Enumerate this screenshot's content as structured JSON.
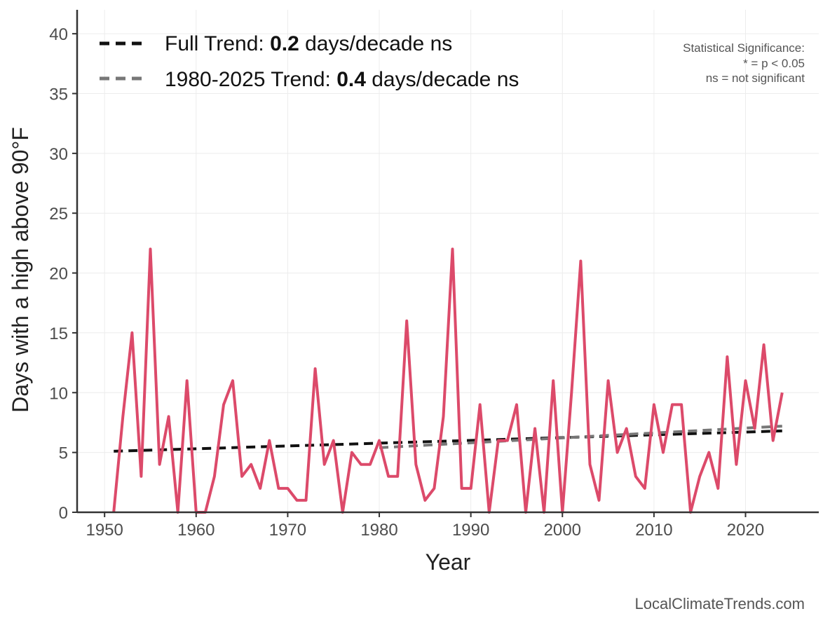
{
  "chart_data": {
    "type": "line",
    "xlabel": "Year",
    "ylabel": "Days with a high above 90°F",
    "xlim": [
      1947,
      2028
    ],
    "ylim": [
      0,
      42
    ],
    "xticks": [
      1950,
      1960,
      1970,
      1980,
      1990,
      2000,
      2010,
      2020
    ],
    "yticks": [
      0,
      5,
      10,
      15,
      20,
      25,
      30,
      35,
      40
    ],
    "grid": true,
    "legend_position": "top-left",
    "series": [
      {
        "color": "#dc4a6a",
        "x": [
          1951,
          1952,
          1953,
          1954,
          1955,
          1956,
          1957,
          1958,
          1959,
          1960,
          1961,
          1962,
          1963,
          1964,
          1965,
          1966,
          1967,
          1968,
          1969,
          1970,
          1971,
          1972,
          1973,
          1974,
          1975,
          1976,
          1977,
          1978,
          1979,
          1980,
          1981,
          1982,
          1983,
          1984,
          1985,
          1986,
          1987,
          1988,
          1989,
          1990,
          1991,
          1992,
          1993,
          1994,
          1995,
          1996,
          1997,
          1998,
          1999,
          2000,
          2001,
          2002,
          2003,
          2004,
          2005,
          2006,
          2007,
          2008,
          2009,
          2010,
          2011,
          2012,
          2013,
          2014,
          2015,
          2016,
          2017,
          2018,
          2019,
          2020,
          2021,
          2022,
          2023,
          2024
        ],
        "y": [
          0,
          8,
          15,
          3,
          22,
          4,
          8,
          0,
          11,
          0,
          0,
          3,
          9,
          11,
          3,
          4,
          2,
          6,
          2,
          2,
          1,
          1,
          12,
          4,
          6,
          0,
          5,
          4,
          4,
          6,
          3,
          3,
          16,
          4,
          1,
          2,
          8,
          22,
          2,
          2,
          9,
          0,
          6,
          6,
          9,
          0,
          7,
          0,
          11,
          0,
          10,
          21,
          4,
          1,
          11,
          5,
          7,
          3,
          2,
          9,
          5,
          9,
          9,
          0,
          3,
          5,
          2,
          13,
          4,
          11,
          7,
          14,
          6,
          10
        ]
      }
    ],
    "trends": [
      {
        "label_prefix": "Full Trend: ",
        "value": "0.2",
        "label_suffix": " days/decade ns",
        "color": "#111111",
        "x": [
          1951,
          2024
        ],
        "y": [
          5.1,
          6.8
        ]
      },
      {
        "label_prefix": "1980-2025 Trend: ",
        "value": "0.4",
        "label_suffix": " days/decade ns",
        "color": "#777777",
        "x": [
          1980,
          2024
        ],
        "y": [
          5.4,
          7.2
        ]
      }
    ]
  },
  "significance_note": {
    "line1": "Statistical Significance:",
    "line2": "* = p < 0.05",
    "line3": "ns = not significant"
  },
  "credit": "LocalClimateTrends.com"
}
